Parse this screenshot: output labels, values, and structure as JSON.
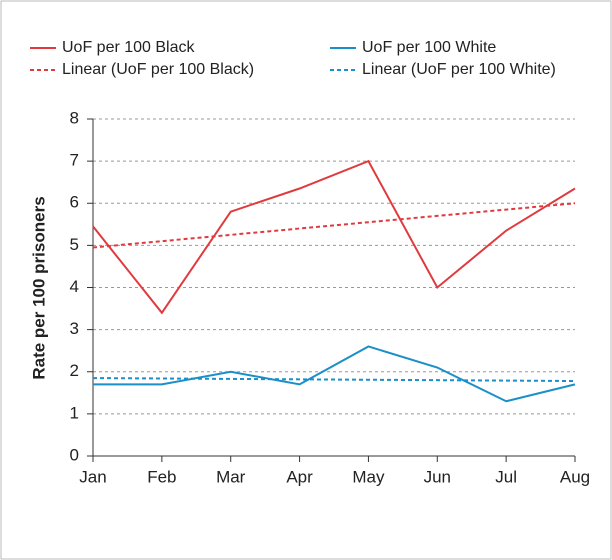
{
  "chart_data": {
    "type": "line",
    "y_label": "Rate per 100 prisoners",
    "categories": [
      "Jan",
      "Feb",
      "Mar",
      "Apr",
      "May",
      "Jun",
      "Jul",
      "Aug"
    ],
    "series": [
      {
        "name": "UoF per 100 Black",
        "color": "#e03a3e",
        "style": "solid",
        "values": [
          5.45,
          3.4,
          5.8,
          6.35,
          7.0,
          4.0,
          5.35,
          6.35
        ]
      },
      {
        "name": "UoF per 100 White",
        "color": "#1a8fc9",
        "style": "solid",
        "values": [
          1.7,
          1.7,
          2.0,
          1.7,
          2.6,
          2.1,
          1.3,
          1.7
        ]
      },
      {
        "name": "Linear (UoF per 100 Black)",
        "color": "#e03a3e",
        "style": "dashed",
        "values": [
          4.95,
          5.1,
          5.25,
          5.4,
          5.55,
          5.7,
          5.85,
          6.0
        ]
      },
      {
        "name": "Linear (UoF per 100 White)",
        "color": "#1a8fc9",
        "style": "dashed",
        "values": [
          1.85,
          1.84,
          1.83,
          1.82,
          1.81,
          1.8,
          1.79,
          1.78
        ]
      }
    ],
    "ylim": [
      0,
      8
    ],
    "yticks": [
      0,
      1,
      2,
      3,
      4,
      5,
      6,
      7,
      8
    ],
    "grid": true,
    "legend": "top"
  }
}
